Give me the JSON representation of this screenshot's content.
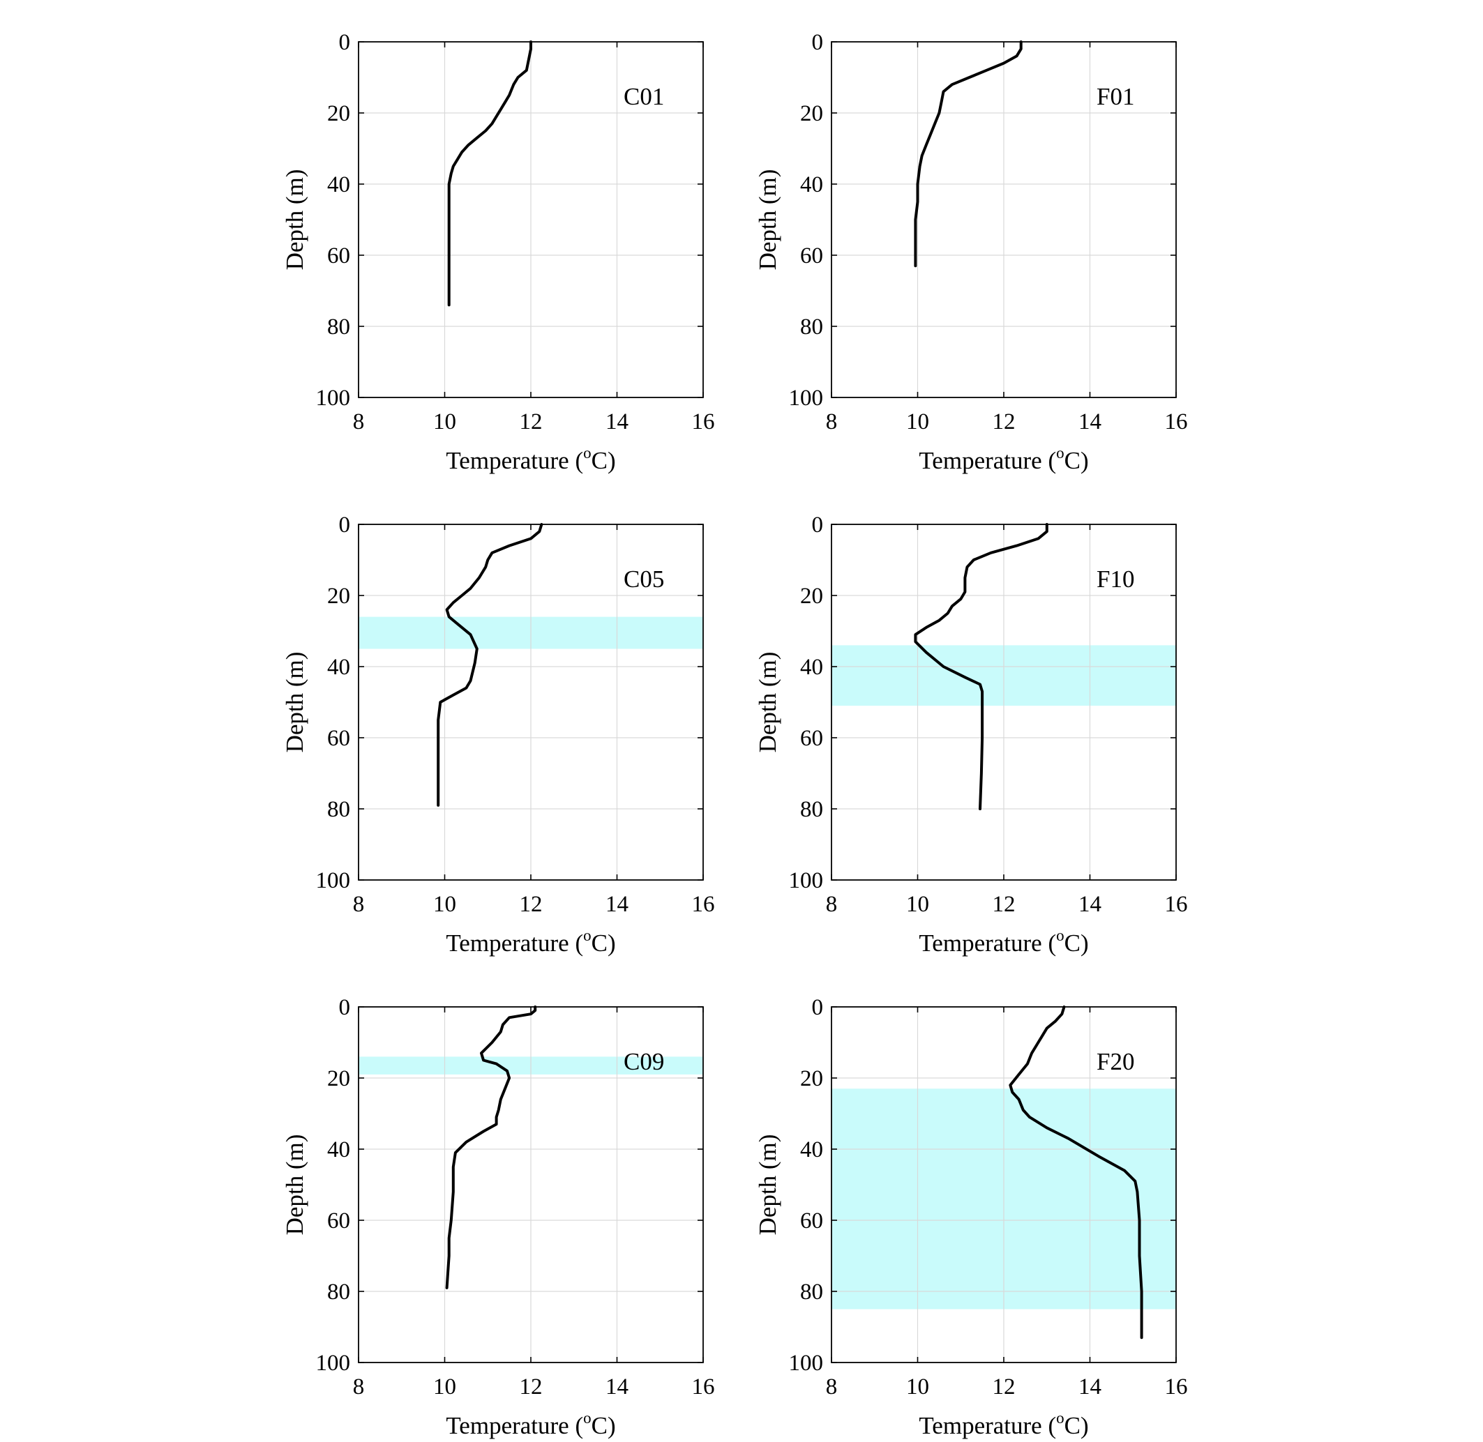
{
  "colors": {
    "profile": "#000000",
    "band": "#c9fbfb",
    "grid": "#d9d9d9",
    "axis": "#000000"
  },
  "chart_data": [
    {
      "type": "line",
      "station": "C01",
      "xlabel": "Temperature (",
      "xlabel_sup": "o",
      "xlabel_end": "C)",
      "ylabel": "Depth (m)",
      "xlim": [
        8,
        16
      ],
      "ylim": [
        0,
        100
      ],
      "y_reversed": true,
      "grid": true,
      "xticks": [
        "8",
        "10",
        "12",
        "14",
        "16"
      ],
      "yticks": [
        "0",
        "20",
        "40",
        "60",
        "80",
        "100"
      ],
      "bands": [],
      "profile": {
        "x": [
          12.0,
          12.0,
          11.95,
          11.9,
          11.7,
          11.6,
          11.5,
          11.4,
          11.3,
          11.2,
          11.1,
          10.95,
          10.75,
          10.55,
          10.4,
          10.3,
          10.2,
          10.15,
          10.1,
          10.1,
          10.1,
          10.1,
          10.1,
          10.1,
          10.1
        ],
        "y": [
          0,
          2,
          5,
          8,
          10,
          12,
          15,
          17,
          19,
          21,
          23,
          25,
          27,
          29,
          31,
          33,
          35,
          37,
          40,
          45,
          50,
          55,
          60,
          65,
          74
        ]
      }
    },
    {
      "type": "line",
      "station": "F01",
      "xlabel": "Temperature (",
      "xlabel_sup": "o",
      "xlabel_end": "C)",
      "ylabel": "Depth (m)",
      "xlim": [
        8,
        16
      ],
      "ylim": [
        0,
        100
      ],
      "y_reversed": true,
      "grid": true,
      "xticks": [
        "8",
        "10",
        "12",
        "14",
        "16"
      ],
      "yticks": [
        "0",
        "20",
        "40",
        "60",
        "80",
        "100"
      ],
      "bands": [],
      "profile": {
        "x": [
          12.4,
          12.4,
          12.3,
          12.0,
          11.6,
          11.2,
          10.8,
          10.6,
          10.55,
          10.5,
          10.4,
          10.3,
          10.2,
          10.1,
          10.05,
          10.0,
          10.0,
          9.95,
          9.95,
          9.95
        ],
        "y": [
          0,
          2,
          4,
          6,
          8,
          10,
          12,
          14,
          17,
          20,
          23,
          26,
          29,
          32,
          35,
          40,
          45,
          50,
          55,
          63
        ]
      }
    },
    {
      "type": "line",
      "station": "C05",
      "xlabel": "Temperature (",
      "xlabel_sup": "o",
      "xlabel_end": "C)",
      "ylabel": "Depth (m)",
      "xlim": [
        8,
        16
      ],
      "ylim": [
        0,
        100
      ],
      "y_reversed": true,
      "grid": true,
      "xticks": [
        "8",
        "10",
        "12",
        "14",
        "16"
      ],
      "yticks": [
        "0",
        "20",
        "40",
        "60",
        "80",
        "100"
      ],
      "bands": [
        [
          26,
          35
        ]
      ],
      "profile": {
        "x": [
          12.25,
          12.2,
          12.0,
          11.5,
          11.1,
          11.0,
          10.95,
          10.8,
          10.6,
          10.4,
          10.2,
          10.05,
          10.1,
          10.3,
          10.6,
          10.75,
          10.7,
          10.6,
          10.5,
          10.2,
          9.9,
          9.85,
          9.85,
          9.85,
          9.85
        ],
        "y": [
          0,
          2,
          4,
          6,
          8,
          10,
          12,
          15,
          18,
          20,
          22,
          24,
          26,
          28,
          31,
          35,
          39,
          44,
          46,
          48,
          50,
          55,
          60,
          70,
          79
        ]
      }
    },
    {
      "type": "line",
      "station": "F10",
      "xlabel": "Temperature (",
      "xlabel_sup": "o",
      "xlabel_end": "C)",
      "ylabel": "Depth (m)",
      "xlim": [
        8,
        16
      ],
      "ylim": [
        0,
        100
      ],
      "y_reversed": true,
      "grid": true,
      "xticks": [
        "8",
        "10",
        "12",
        "14",
        "16"
      ],
      "yticks": [
        "0",
        "20",
        "40",
        "60",
        "80",
        "100"
      ],
      "bands": [
        [
          34,
          51
        ]
      ],
      "profile": {
        "x": [
          13.0,
          13.0,
          12.8,
          12.3,
          11.7,
          11.3,
          11.15,
          11.1,
          11.1,
          11.0,
          10.8,
          10.7,
          10.5,
          10.2,
          9.95,
          9.95,
          10.2,
          10.6,
          11.1,
          11.45,
          11.5,
          11.5,
          11.5,
          11.48,
          11.45
        ],
        "y": [
          0,
          2,
          4,
          6,
          8,
          10,
          12,
          15,
          19,
          21,
          23,
          25,
          27,
          29,
          31,
          33,
          36,
          40,
          43,
          45,
          47,
          50,
          60,
          70,
          80
        ]
      }
    },
    {
      "type": "line",
      "station": "C09",
      "xlabel": "Temperature (",
      "xlabel_sup": "o",
      "xlabel_end": "C)",
      "ylabel": "Depth (m)",
      "xlim": [
        8,
        16
      ],
      "ylim": [
        0,
        100
      ],
      "y_reversed": true,
      "grid": true,
      "xticks": [
        "8",
        "10",
        "12",
        "14",
        "16"
      ],
      "yticks": [
        "0",
        "20",
        "40",
        "60",
        "80",
        "100"
      ],
      "bands": [
        [
          14,
          19
        ]
      ],
      "profile": {
        "x": [
          12.1,
          12.1,
          12.0,
          11.5,
          11.35,
          11.3,
          11.1,
          10.85,
          10.9,
          11.2,
          11.45,
          11.5,
          11.4,
          11.3,
          11.25,
          11.2,
          11.2,
          10.9,
          10.5,
          10.25,
          10.2,
          10.2,
          10.15,
          10.1,
          10.1,
          10.05
        ],
        "y": [
          0,
          1,
          2,
          3,
          5,
          7,
          10,
          13,
          15,
          16,
          18,
          20,
          23,
          26,
          29,
          31,
          33,
          35,
          38,
          41,
          45,
          52,
          60,
          65,
          70,
          79
        ]
      }
    },
    {
      "type": "line",
      "station": "F20",
      "xlabel": "Temperature (",
      "xlabel_sup": "o",
      "xlabel_end": "C)",
      "ylabel": "Depth (m)",
      "xlim": [
        8,
        16
      ],
      "ylim": [
        0,
        100
      ],
      "y_reversed": true,
      "grid": true,
      "xticks": [
        "8",
        "10",
        "12",
        "14",
        "16"
      ],
      "yticks": [
        "0",
        "20",
        "40",
        "60",
        "80",
        "100"
      ],
      "bands": [
        [
          23,
          85
        ]
      ],
      "profile": {
        "x": [
          13.4,
          13.35,
          13.2,
          13.0,
          12.9,
          12.8,
          12.65,
          12.55,
          12.35,
          12.15,
          12.2,
          12.35,
          12.45,
          12.6,
          13.0,
          13.5,
          14.2,
          14.8,
          15.05,
          15.1,
          15.15,
          15.15,
          15.2,
          15.2,
          15.2
        ],
        "y": [
          0,
          2,
          4,
          6,
          8,
          10,
          13,
          16,
          19,
          22,
          24,
          26,
          29,
          31,
          34,
          37,
          42,
          46,
          49,
          52,
          60,
          70,
          80,
          87,
          93
        ]
      }
    }
  ]
}
